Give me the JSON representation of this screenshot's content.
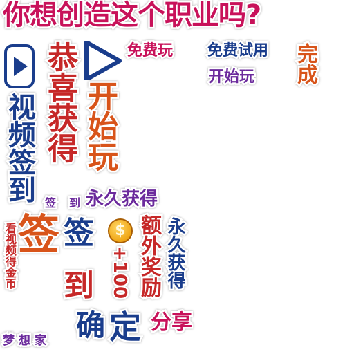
{
  "title": "你想创造这个职业吗?",
  "labels": {
    "free_play": "免费玩",
    "free_trial": "免费试用",
    "start_small": "开始玩",
    "complete": "完成",
    "congrats": "恭喜获得",
    "start_big": "开始玩",
    "video_signin": "视频签到",
    "small_signin_1": "签",
    "small_signin_2": "到",
    "forever_get": "永久获得",
    "signin_big": "签",
    "signin_med_1": "签",
    "signin_med_2": "到",
    "plus100": "+100",
    "extra_reward": "额外奖励",
    "forever_get_vertical": "永久获得",
    "watch_video_gold": "看视频得金币",
    "confirm": "确",
    "ding": "定",
    "share": "分享",
    "dream_home": "梦想家"
  },
  "icons": {
    "play_small": "play-icon",
    "play_big": "play-triangle-icon",
    "coin": "coin-icon"
  },
  "colors": {
    "pink": "#c8125a",
    "blue": "#1a3d8c",
    "red": "#c62828",
    "orange": "#d8541a",
    "purple": "#6b2a9c",
    "gold": "#f0a616"
  }
}
